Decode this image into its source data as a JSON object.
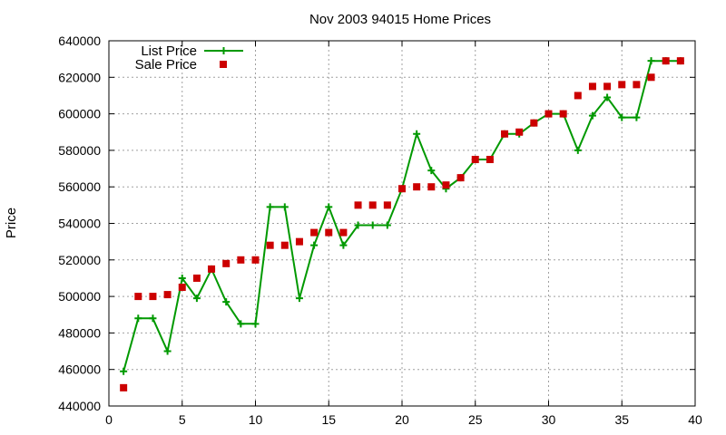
{
  "chart_data": {
    "type": "line",
    "title": "Nov 2003 94015 Home Prices",
    "xlabel": "",
    "ylabel": "Price",
    "xlim": [
      0,
      40
    ],
    "ylim": [
      440000,
      640000
    ],
    "x_ticks": [
      0,
      5,
      10,
      15,
      20,
      25,
      30,
      35,
      40
    ],
    "y_ticks": [
      440000,
      460000,
      480000,
      500000,
      520000,
      540000,
      560000,
      580000,
      600000,
      620000,
      640000
    ],
    "grid": true,
    "legend_position": "top-left",
    "series": [
      {
        "name": "List Price",
        "style": "line-with-plus-markers",
        "color": "#009900",
        "x": [
          1,
          2,
          3,
          4,
          5,
          6,
          7,
          8,
          9,
          10,
          11,
          12,
          13,
          14,
          15,
          16,
          17,
          18,
          19,
          20,
          21,
          22,
          23,
          24,
          25,
          26,
          27,
          28,
          29,
          30,
          31,
          32,
          33,
          34,
          35,
          36,
          37,
          38,
          39
        ],
        "y": [
          459000,
          488000,
          488000,
          470000,
          510000,
          499000,
          515000,
          497000,
          485000,
          485000,
          549000,
          549000,
          499000,
          528000,
          549000,
          528000,
          539000,
          539000,
          539000,
          559000,
          589000,
          569000,
          559000,
          565000,
          575000,
          575000,
          589000,
          589000,
          595000,
          600000,
          600000,
          580000,
          599000,
          609000,
          598000,
          598000,
          629000,
          629000,
          629000
        ]
      },
      {
        "name": "Sale Price",
        "style": "square-markers",
        "color": "#cc0000",
        "x": [
          1,
          2,
          3,
          4,
          5,
          6,
          7,
          8,
          9,
          10,
          11,
          12,
          13,
          14,
          15,
          16,
          17,
          18,
          19,
          20,
          21,
          22,
          23,
          24,
          25,
          26,
          27,
          28,
          29,
          30,
          31,
          32,
          33,
          34,
          35,
          36,
          37,
          38,
          39
        ],
        "y": [
          450000,
          500000,
          500000,
          501000,
          505000,
          510000,
          515000,
          518000,
          520000,
          520000,
          528000,
          528000,
          530000,
          535000,
          535000,
          535000,
          550000,
          550000,
          550000,
          559000,
          560000,
          560000,
          561000,
          565000,
          575000,
          575000,
          589000,
          590000,
          595000,
          600000,
          600000,
          610000,
          615000,
          615000,
          616000,
          616000,
          620000,
          629000,
          629000
        ]
      }
    ]
  }
}
